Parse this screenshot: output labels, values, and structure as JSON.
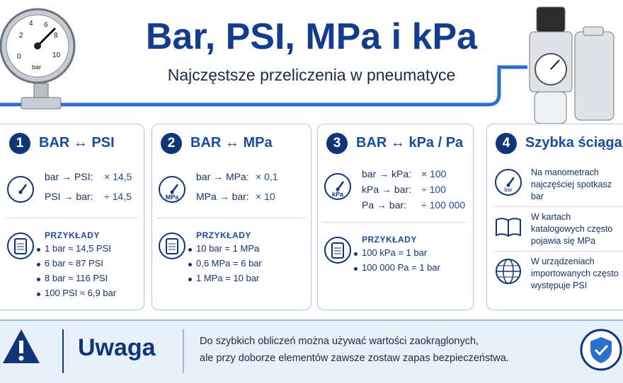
{
  "header": {
    "title": "Bar, PSI, MPa i kPa",
    "subtitle": "Najczęstsze przeliczenia w pneumatyce",
    "gauge_labels": [
      "0",
      "2",
      "4",
      "6",
      "8",
      "10"
    ],
    "gauge_unit": "bar"
  },
  "cards": [
    {
      "number": "1",
      "title": "BAR ↔ PSI",
      "conversions": [
        [
          "bar → PSI:",
          "× 14,5"
        ],
        [
          "PSI → bar:",
          "÷ 14,5"
        ]
      ],
      "examples_title": "PRZYKŁADY",
      "examples": [
        "1 bar ≈ 14,5 PSI",
        "6 bar ≈ 87 PSI",
        "8 bar ≈ 116 PSI",
        "100 PSI ≈ 6,9 bar"
      ]
    },
    {
      "number": "2",
      "title": "BAR ↔ MPa",
      "icon_label": "MPa",
      "conversions": [
        [
          "bar → MPa:",
          "× 0,1"
        ],
        [
          "MPa → bar:",
          "× 10"
        ]
      ],
      "examples_title": "PRZYKŁADY",
      "examples": [
        "10 bar = 1 MPa",
        "0,6 MPa = 6 bar",
        "1 MPa = 10 bar"
      ]
    },
    {
      "number": "3",
      "title": "BAR ↔ kPa / Pa",
      "icon_label": "kPa",
      "conversions": [
        [
          "bar → kPa:",
          "× 100"
        ],
        [
          "kPa → bar:",
          "÷ 100"
        ],
        [
          "Pa → bar:",
          "÷ 100 000"
        ]
      ],
      "examples_title": "PRZYKŁADY",
      "examples": [
        "100 kPa = 1 bar",
        "100 000 Pa = 1 bar"
      ]
    }
  ],
  "cheatsheet": {
    "number": "4",
    "title": "Szybka ściąga",
    "icon_label": "bar",
    "items": [
      "Na manometrach najczęściej spotkasz bar",
      "W kartach katalogowych często pojawia się MPa",
      "W urządzeniach importowanych często występuje PSI"
    ]
  },
  "warning": {
    "title": "Uwaga",
    "lines": [
      "Do szybkich obliczeń można używać wartości zaokrąglonych,",
      "ale przy doborze elementów zawsze zostaw zapas bezpieczeństwa."
    ]
  }
}
